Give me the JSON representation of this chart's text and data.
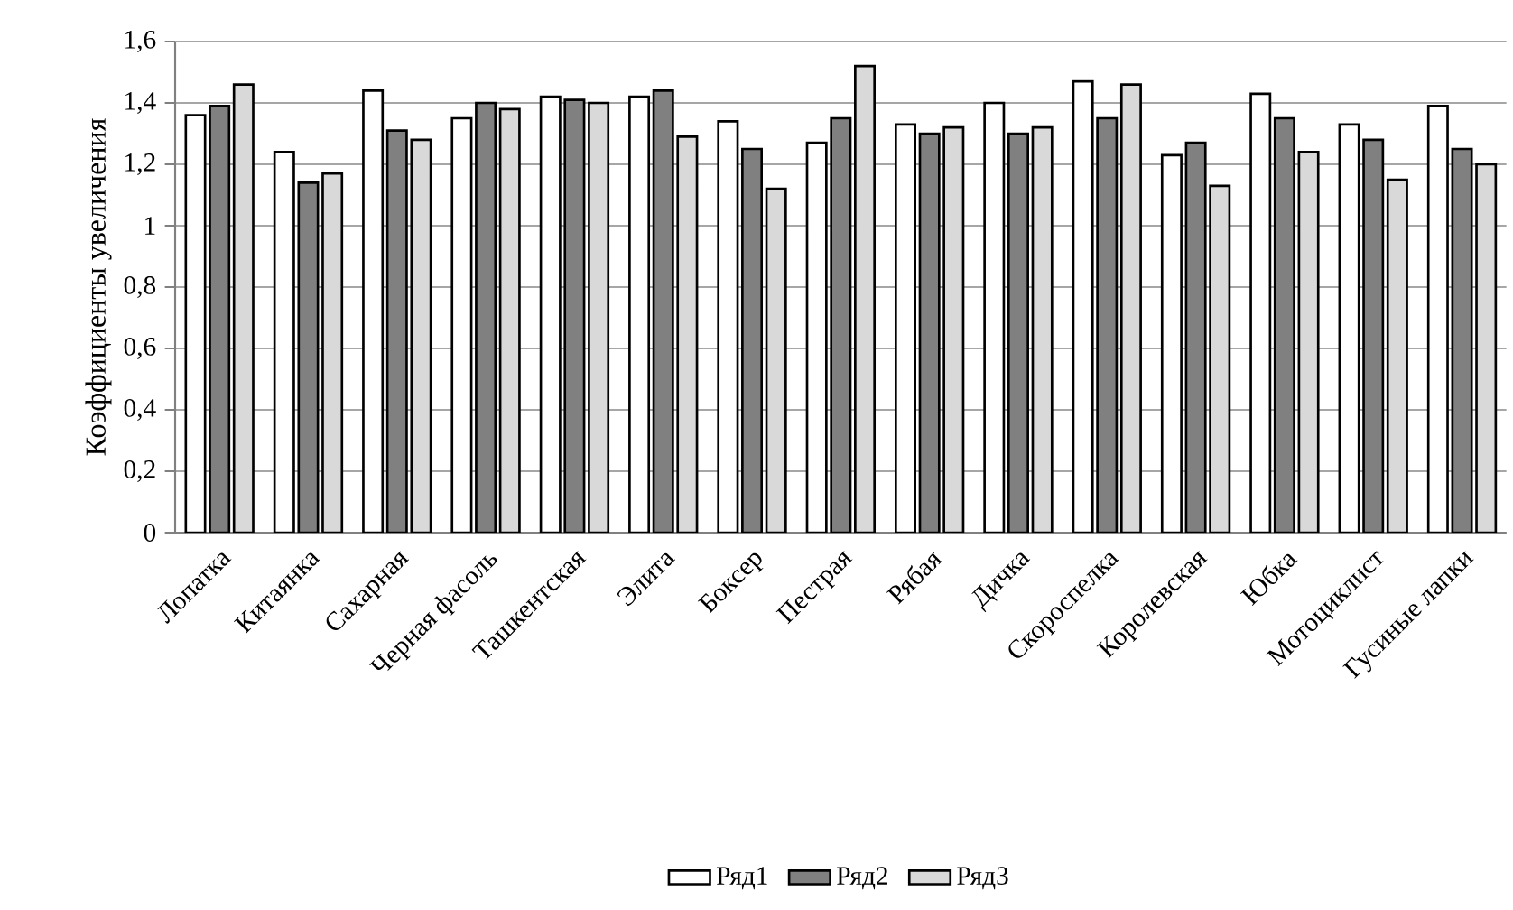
{
  "chart_data": {
    "type": "bar",
    "ylabel": "Коэффициенты увеличения",
    "categories": [
      "Лопатка",
      "Китаянка",
      "Сахарная",
      "Черная фасоль",
      "Ташкентская",
      "Элита",
      "Боксер",
      "Пестрая",
      "Рябая",
      "Дичка",
      "Скороспелка",
      "Королевская",
      "Юбка",
      "Мотоциклист",
      "Гусиные лапки"
    ],
    "series": [
      {
        "name": "Ряд1",
        "color": "#ffffff",
        "values": [
          1.36,
          1.24,
          1.44,
          1.35,
          1.42,
          1.42,
          1.34,
          1.27,
          1.33,
          1.4,
          1.47,
          1.23,
          1.43,
          1.33,
          1.39
        ]
      },
      {
        "name": "Ряд2",
        "color": "#808080",
        "values": [
          1.39,
          1.14,
          1.31,
          1.4,
          1.41,
          1.44,
          1.25,
          1.35,
          1.3,
          1.3,
          1.35,
          1.27,
          1.35,
          1.28,
          1.25
        ]
      },
      {
        "name": "Ряд3",
        "color": "#d9d9d9",
        "values": [
          1.46,
          1.17,
          1.28,
          1.38,
          1.4,
          1.29,
          1.12,
          1.52,
          1.32,
          1.32,
          1.46,
          1.13,
          1.24,
          1.15,
          1.2
        ]
      }
    ],
    "ylim": [
      0,
      1.6
    ],
    "yticks": [
      0,
      {
        "value": 0.2,
        "label": "0,2"
      },
      {
        "value": 0.4,
        "label": "0,4"
      },
      {
        "value": 0.6,
        "label": "0,6"
      },
      {
        "value": 0.8,
        "label": "0,8"
      },
      1,
      {
        "value": 1.2,
        "label": "1,2"
      },
      {
        "value": 1.4,
        "label": "1,4"
      },
      {
        "value": 1.6,
        "label": "1,6"
      }
    ],
    "grid": "y",
    "legend": "bottom"
  }
}
